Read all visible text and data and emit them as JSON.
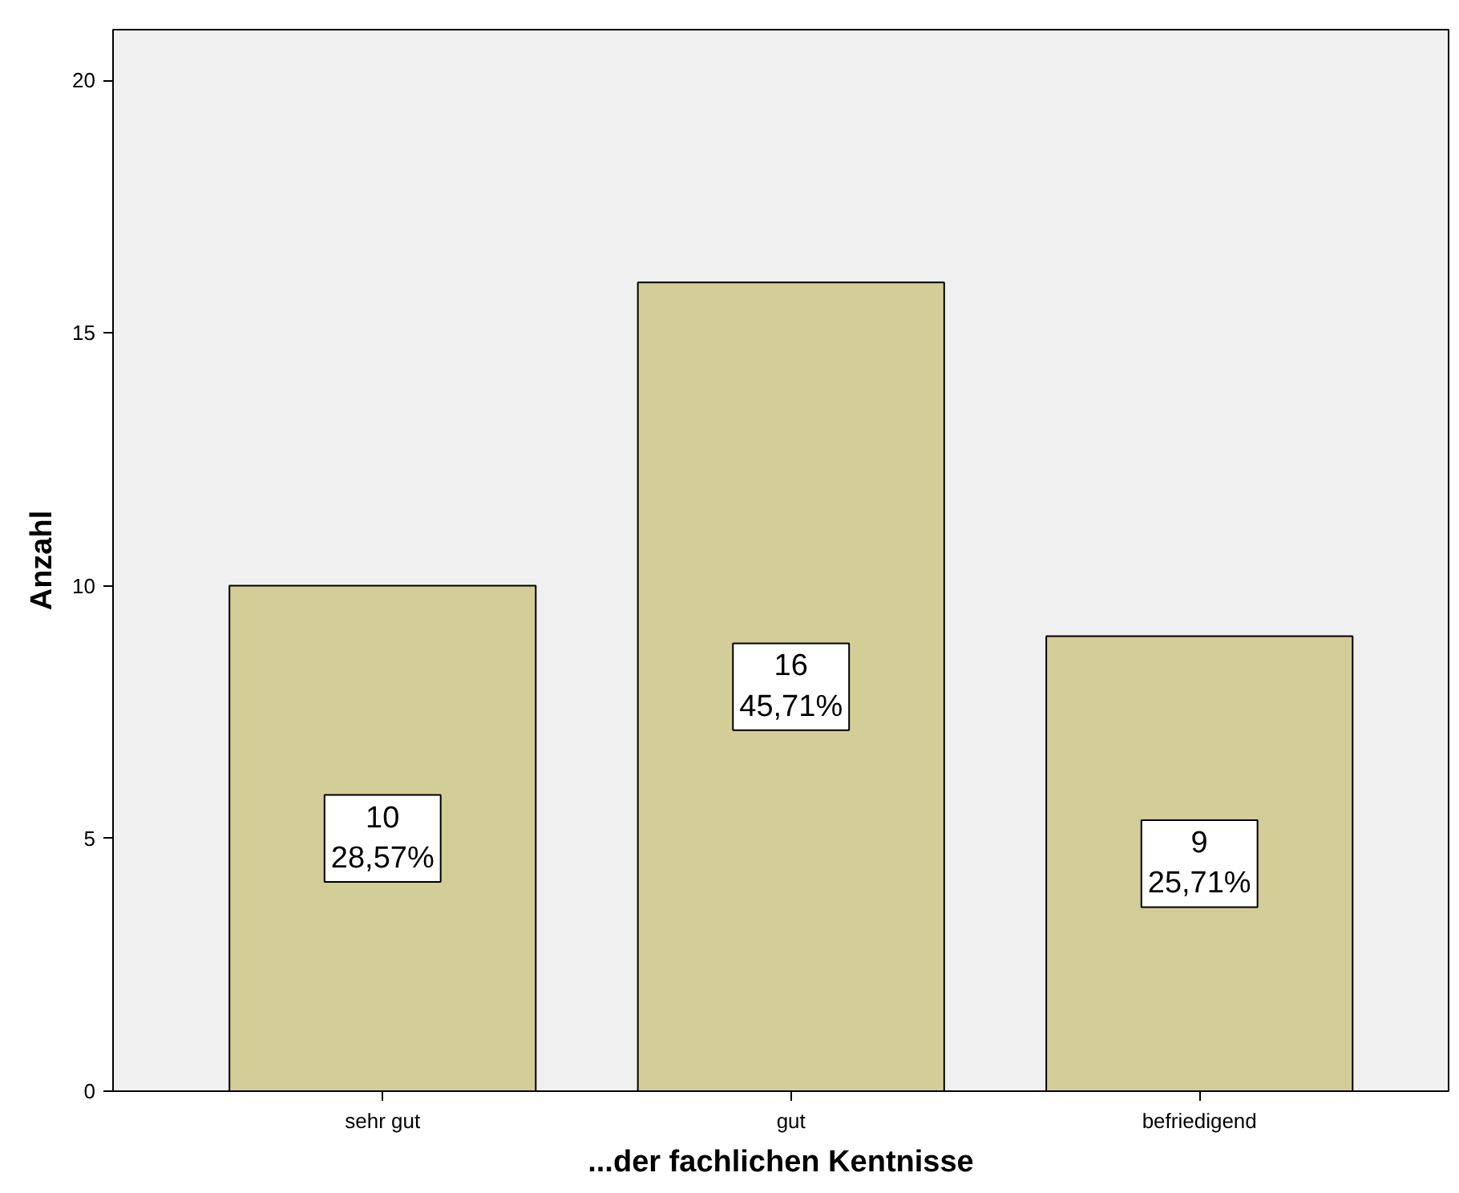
{
  "chart_data": {
    "type": "bar",
    "xlabel": "...der fachlichen Kentnisse",
    "ylabel": "Anzahl",
    "categories": [
      "sehr gut",
      "gut",
      "befriedigend"
    ],
    "values": [
      10,
      16,
      9
    ],
    "value_labels": [
      "10\n28,57%",
      "16\n45,71%",
      "9\n25,71%"
    ],
    "color": "#d3ce97",
    "ylim": [
      0,
      21
    ],
    "yticks": [
      0,
      5,
      10,
      15,
      20
    ],
    "grid": false
  }
}
